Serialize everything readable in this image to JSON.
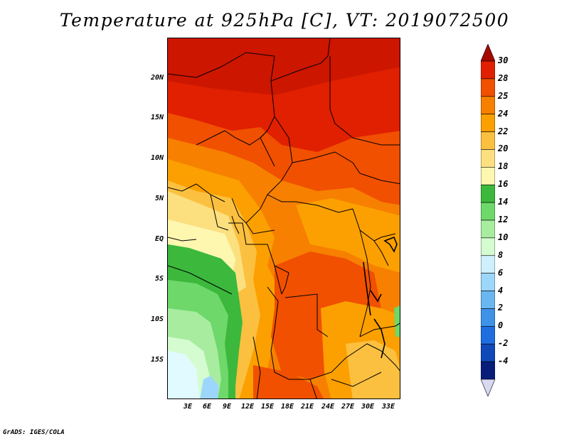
{
  "title": "Temperature at 925hPa [C], VT: 2019072500",
  "credit": "GrADS: IGES/COLA",
  "lat_labels": [
    "20N",
    "15N",
    "10N",
    "5N",
    "EQ",
    "5S",
    "10S",
    "15S"
  ],
  "lon_labels": [
    "3E",
    "6E",
    "9E",
    "12E",
    "15E",
    "18E",
    "21E",
    "24E",
    "27E",
    "30E",
    "33E"
  ],
  "colorbar": {
    "labels": [
      "30",
      "28",
      "25",
      "24",
      "22",
      "20",
      "18",
      "16",
      "14",
      "12",
      "10",
      "8",
      "6",
      "4",
      "2",
      "0",
      "-2",
      "-4"
    ],
    "colors": [
      "#a50a00",
      "#e02000",
      "#f05000",
      "#f78000",
      "#fba000",
      "#fcc040",
      "#fce080",
      "#fdf7b0",
      "#3cb83c",
      "#6ed86a",
      "#a8eca0",
      "#d4fcd0",
      "#cdf0fc",
      "#9cd6fa",
      "#6ab6f0",
      "#3e92e8",
      "#1e6ee0",
      "#1048b8",
      "#081c7a",
      "#d8d8f0"
    ]
  }
}
